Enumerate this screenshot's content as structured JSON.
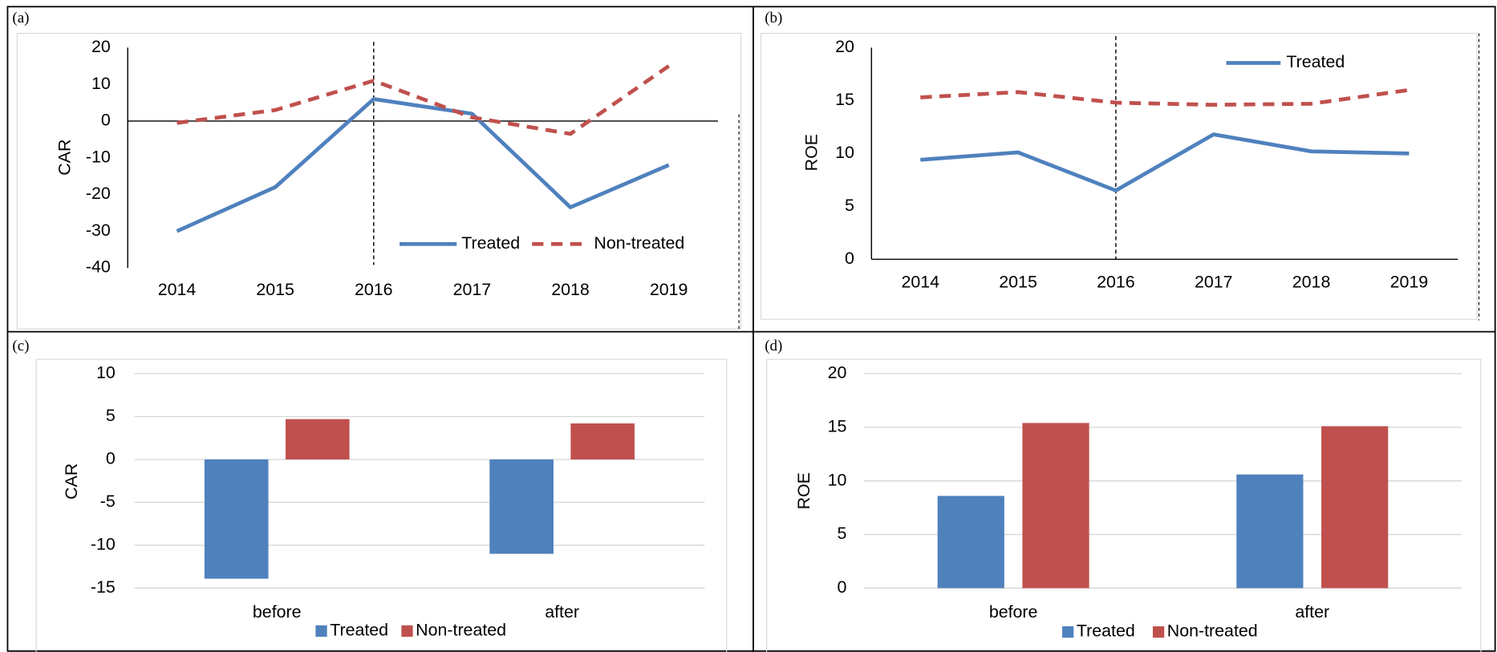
{
  "chart_data": [
    {
      "type": "line",
      "panel": "(a)",
      "y_label": "CAR",
      "categories": [
        "2014",
        "2015",
        "2016",
        "2017",
        "2018",
        "2019"
      ],
      "series": [
        {
          "name": "Treated",
          "color": "#4f81bd",
          "dash": false,
          "values": [
            -30,
            -18,
            6,
            2,
            -23.5,
            -12
          ]
        },
        {
          "name": "Non-treated",
          "color": "#c0504d",
          "dash": true,
          "values": [
            -0.5,
            3,
            11,
            1,
            -3.5,
            15
          ]
        }
      ],
      "ylim": [
        -40,
        20
      ],
      "yticks": [
        -40,
        -30,
        -20,
        -10,
        0,
        10,
        20
      ],
      "grid": false
    },
    {
      "type": "line",
      "panel": "(b)",
      "y_label": "ROE",
      "categories": [
        "2014",
        "2015",
        "2016",
        "2017",
        "2018",
        "2019"
      ],
      "series": [
        {
          "name": "Treated",
          "color": "#4f81bd",
          "dash": false,
          "values": [
            9.4,
            10.1,
            6.5,
            11.8,
            10.2,
            10.0
          ]
        },
        {
          "color": "#c0504d",
          "dash": true,
          "values": [
            15.3,
            15.8,
            14.8,
            14.6,
            14.7,
            16.0
          ]
        }
      ],
      "ylim": [
        0,
        20
      ],
      "yticks": [
        0,
        5,
        10,
        15,
        20
      ],
      "grid": false
    },
    {
      "type": "bar",
      "panel": "(c)",
      "y_label": "CAR",
      "categories": [
        "before",
        "after"
      ],
      "series": [
        {
          "name": "Treated",
          "color": "#4f81bd",
          "values": [
            -13.9,
            -11.0
          ]
        },
        {
          "name": "Non-treated",
          "color": "#c0504d",
          "values": [
            4.7,
            4.2
          ]
        }
      ],
      "ylim": [
        -15,
        10
      ],
      "yticks": [
        -15,
        -10,
        -5,
        0,
        5,
        10
      ],
      "grid": true
    },
    {
      "type": "bar",
      "panel": "(d)",
      "y_label": "ROE",
      "categories": [
        "before",
        "after"
      ],
      "series": [
        {
          "name": "Treated",
          "color": "#4f81bd",
          "values": [
            8.6,
            10.6
          ]
        },
        {
          "name": "Non-treated",
          "color": "#c0504d",
          "values": [
            15.4,
            15.1
          ]
        }
      ],
      "ylim": [
        0,
        20
      ],
      "yticks": [
        0,
        5,
        10,
        15,
        20
      ],
      "grid": true
    }
  ]
}
